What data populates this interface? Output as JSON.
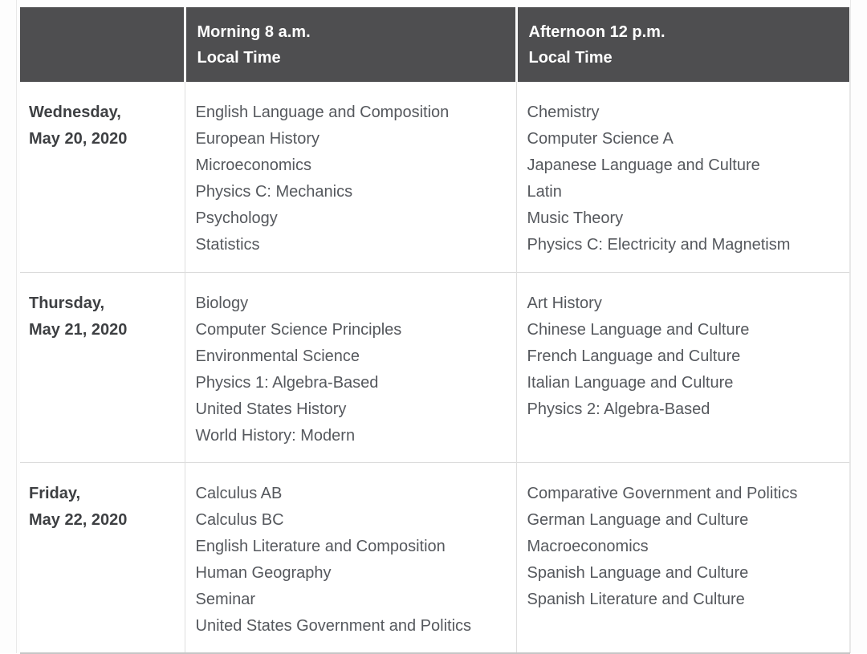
{
  "table": {
    "header": {
      "corner": "",
      "columns": [
        {
          "line1": "Morning 8 a.m.",
          "line2": "Local Time"
        },
        {
          "line1": "Afternoon 12 p.m.",
          "line2": "Local Time"
        }
      ]
    },
    "rows": [
      {
        "day": "Wednesday,",
        "date": "May 20, 2020",
        "morning": [
          "English Language and Composition",
          "European History",
          "Microeconomics",
          "Physics C: Mechanics",
          "Psychology",
          "Statistics"
        ],
        "afternoon": [
          "Chemistry",
          "Computer Science A",
          "Japanese Language and Culture",
          "Latin",
          "Music Theory",
          "Physics C: Electricity and Magnetism"
        ]
      },
      {
        "day": "Thursday,",
        "date": "May 21, 2020",
        "morning": [
          "Biology",
          "Computer Science Principles",
          "Environmental Science",
          "Physics 1: Algebra-Based",
          "United States History",
          "World History: Modern"
        ],
        "afternoon": [
          "Art History",
          "Chinese Language and Culture",
          "French Language and Culture",
          "Italian Language and Culture",
          "Physics 2: Algebra-Based"
        ]
      },
      {
        "day": "Friday,",
        "date": "May 22, 2020",
        "morning": [
          "Calculus AB",
          "Calculus BC",
          "English Literature and Composition",
          "Human Geography",
          "Seminar",
          "United States Government and Politics"
        ],
        "afternoon": [
          "Comparative Government and Politics",
          "German Language and Culture",
          "Macroeconomics",
          "Spanish Language and Culture",
          "Spanish Literature and Culture"
        ]
      }
    ]
  },
  "colors": {
    "header_bg": "#4e4e50",
    "header_text": "#ffffff",
    "date_text": "#3e4043",
    "subject_text": "#55585d",
    "grid_line": "#dadada"
  }
}
